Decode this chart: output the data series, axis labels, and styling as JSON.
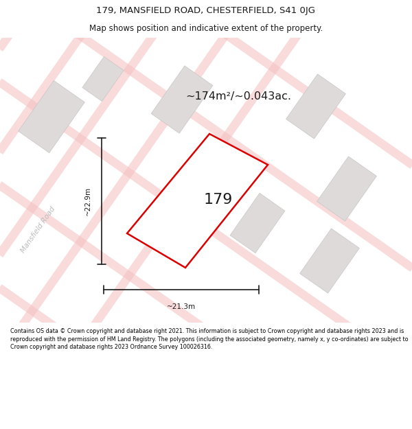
{
  "title_line1": "179, MANSFIELD ROAD, CHESTERFIELD, S41 0JG",
  "title_line2": "Map shows position and indicative extent of the property.",
  "area_text": "~174m²/~0.043ac.",
  "property_number": "179",
  "dim_width": "~21.3m",
  "dim_height": "~22.9m",
  "road_label": "Mansfield Road",
  "footer_text": "Contains OS data © Crown copyright and database right 2021. This information is subject to Crown copyright and database rights 2023 and is reproduced with the permission of HM Land Registry. The polygons (including the associated geometry, namely x, y co-ordinates) are subject to Crown copyright and database rights 2023 Ordnance Survey 100026316.",
  "bg_color": "#ffffff",
  "map_bg": "#f5f3f3",
  "plot_fill": "#f5f3f3",
  "plot_edge_color": "#dd0000",
  "neighbor_fill": "#dedad9",
  "neighbor_edge": "#c8c5c5",
  "road_line_color": "#f5bfbf",
  "dim_line_color": "#1a1a1a",
  "text_color": "#1a1a1a",
  "footer_bg": "#ffffff",
  "road_label_color": "#bbbbbb",
  "title_color": "#1a1a1a"
}
